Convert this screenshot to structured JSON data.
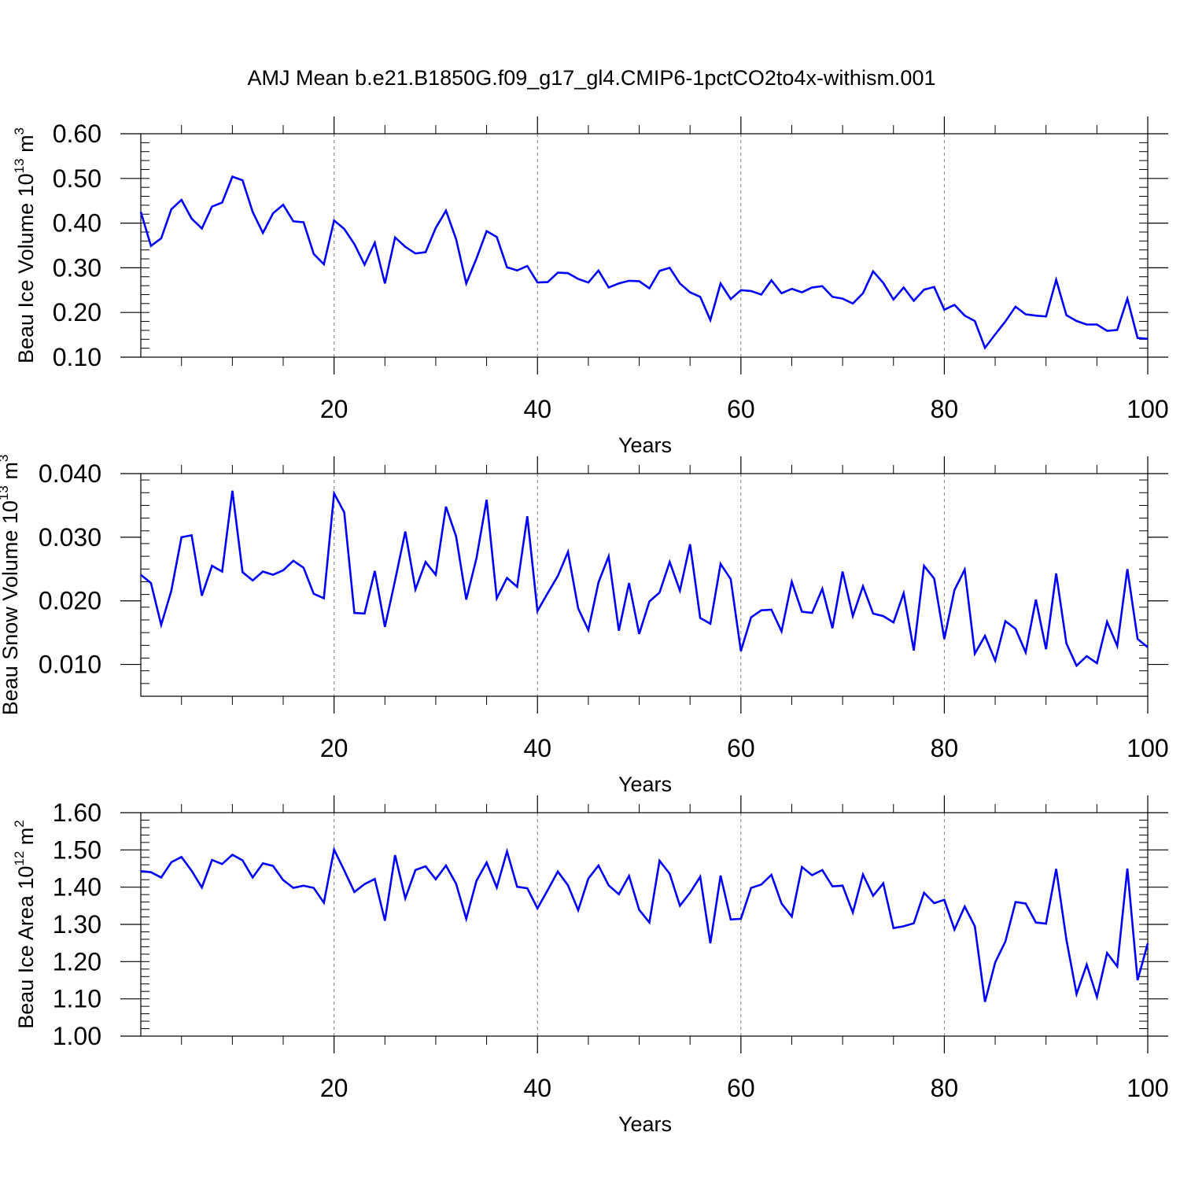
{
  "chart_data": {
    "type": "line",
    "title": "AMJ Mean b.e21.B1850G.f09_g17_gl4.CMIP6-1pctCO2to4x-withism.001",
    "line_color": "#0000ff",
    "grid": "dashed vertical lines at major x ticks",
    "panels": [
      {
        "ylabel": "Beau Ice Volume",
        "ylabel_unit_base": "10",
        "ylabel_unit_exp": "13",
        "ylabel_unit_tail": " m",
        "ylabel_unit_exp2": "3",
        "xlabel": "Years",
        "xlim": [
          1,
          100
        ],
        "ylim": [
          0.1,
          0.6
        ],
        "x_ticks": [
          20,
          40,
          60,
          80,
          100
        ],
        "x_tick_labels": [
          "20",
          "40",
          "60",
          "80",
          "100"
        ],
        "y_ticks": [
          0.1,
          0.2,
          0.3,
          0.4,
          0.5,
          0.6
        ],
        "y_tick_labels": [
          "0.10",
          "0.20",
          "0.30",
          "0.40",
          "0.50",
          "0.60"
        ],
        "y_minor_step": 0.02,
        "values": [
          0.425,
          0.349,
          0.366,
          0.431,
          0.452,
          0.41,
          0.388,
          0.437,
          0.446,
          0.504,
          0.496,
          0.425,
          0.378,
          0.422,
          0.441,
          0.404,
          0.402,
          0.331,
          0.308,
          0.406,
          0.387,
          0.353,
          0.307,
          0.356,
          0.265,
          0.368,
          0.347,
          0.332,
          0.335,
          0.389,
          0.428,
          0.364,
          0.265,
          0.321,
          0.382,
          0.369,
          0.301,
          0.294,
          0.304,
          0.267,
          0.268,
          0.289,
          0.288,
          0.275,
          0.267,
          0.294,
          0.256,
          0.265,
          0.271,
          0.27,
          0.254,
          0.293,
          0.3,
          0.265,
          0.245,
          0.235,
          0.183,
          0.265,
          0.23,
          0.25,
          0.248,
          0.24,
          0.272,
          0.243,
          0.253,
          0.245,
          0.256,
          0.259,
          0.235,
          0.231,
          0.22,
          0.243,
          0.292,
          0.266,
          0.229,
          0.256,
          0.226,
          0.251,
          0.257,
          0.206,
          0.217,
          0.193,
          0.181,
          0.121,
          0.151,
          0.18,
          0.213,
          0.196,
          0.193,
          0.191,
          0.273,
          0.194,
          0.181,
          0.173,
          0.173,
          0.159,
          0.161,
          0.231,
          0.143,
          0.141
        ]
      },
      {
        "ylabel": "Beau Snow Volume",
        "ylabel_unit_base": "10",
        "ylabel_unit_exp": "13",
        "ylabel_unit_tail": " m",
        "ylabel_unit_exp2": "3",
        "xlabel": "Years",
        "xlim": [
          1,
          100
        ],
        "ylim": [
          0.005,
          0.04
        ],
        "x_ticks": [
          20,
          40,
          60,
          80,
          100
        ],
        "x_tick_labels": [
          "20",
          "40",
          "60",
          "80",
          "100"
        ],
        "y_ticks": [
          0.01,
          0.02,
          0.03,
          0.04
        ],
        "y_tick_labels": [
          "0.010",
          "0.020",
          "0.030",
          "0.040"
        ],
        "y_minor_step": 0.002,
        "values": [
          0.0241,
          0.0228,
          0.0162,
          0.0216,
          0.03,
          0.0303,
          0.0208,
          0.0255,
          0.0246,
          0.0373,
          0.0245,
          0.0232,
          0.0246,
          0.0241,
          0.0248,
          0.0263,
          0.0252,
          0.0211,
          0.0204,
          0.0369,
          0.0339,
          0.0181,
          0.018,
          0.0247,
          0.0159,
          0.0232,
          0.0309,
          0.0218,
          0.0261,
          0.0241,
          0.0348,
          0.0301,
          0.0202,
          0.0267,
          0.0359,
          0.0204,
          0.0236,
          0.0222,
          0.0333,
          0.0184,
          0.0212,
          0.0239,
          0.0277,
          0.0188,
          0.0154,
          0.0229,
          0.027,
          0.0153,
          0.0228,
          0.0148,
          0.0199,
          0.0213,
          0.0261,
          0.0216,
          0.0289,
          0.0173,
          0.0164,
          0.0258,
          0.0234,
          0.0121,
          0.0174,
          0.0185,
          0.0186,
          0.0152,
          0.023,
          0.0183,
          0.0181,
          0.0219,
          0.0157,
          0.0246,
          0.0176,
          0.0223,
          0.018,
          0.0176,
          0.0166,
          0.0212,
          0.0122,
          0.0255,
          0.0235,
          0.014,
          0.0217,
          0.0249,
          0.0117,
          0.0145,
          0.0106,
          0.0168,
          0.0156,
          0.0119,
          0.0202,
          0.0124,
          0.0243,
          0.0133,
          0.0098,
          0.0113,
          0.0102,
          0.0167,
          0.0129,
          0.025,
          0.014,
          0.0127
        ]
      },
      {
        "ylabel": "Beau Ice Area",
        "ylabel_unit_base": "10",
        "ylabel_unit_exp": "12",
        "ylabel_unit_tail": " m",
        "ylabel_unit_exp2": "2",
        "xlabel": "Years",
        "xlim": [
          1,
          100
        ],
        "ylim": [
          1.0,
          1.6
        ],
        "x_ticks": [
          20,
          40,
          60,
          80,
          100
        ],
        "x_tick_labels": [
          "20",
          "40",
          "60",
          "80",
          "100"
        ],
        "y_ticks": [
          1.0,
          1.1,
          1.2,
          1.3,
          1.4,
          1.5,
          1.6
        ],
        "y_tick_labels": [
          "1.00",
          "1.10",
          "1.20",
          "1.30",
          "1.40",
          "1.50",
          "1.60"
        ],
        "y_minor_step": 0.02,
        "values": [
          1.443,
          1.44,
          1.426,
          1.467,
          1.481,
          1.444,
          1.399,
          1.473,
          1.462,
          1.487,
          1.472,
          1.426,
          1.464,
          1.457,
          1.419,
          1.398,
          1.404,
          1.398,
          1.358,
          1.501,
          1.445,
          1.387,
          1.408,
          1.422,
          1.31,
          1.486,
          1.37,
          1.446,
          1.456,
          1.421,
          1.458,
          1.409,
          1.315,
          1.417,
          1.466,
          1.399,
          1.496,
          1.401,
          1.397,
          1.343,
          1.392,
          1.442,
          1.405,
          1.338,
          1.423,
          1.458,
          1.405,
          1.381,
          1.43,
          1.339,
          1.305,
          1.471,
          1.436,
          1.35,
          1.385,
          1.428,
          1.249,
          1.431,
          1.313,
          1.315,
          1.398,
          1.407,
          1.433,
          1.356,
          1.321,
          1.454,
          1.432,
          1.446,
          1.402,
          1.404,
          1.332,
          1.434,
          1.377,
          1.41,
          1.29,
          1.295,
          1.303,
          1.385,
          1.357,
          1.366,
          1.286,
          1.348,
          1.295,
          1.092,
          1.198,
          1.254,
          1.36,
          1.356,
          1.305,
          1.302,
          1.449,
          1.259,
          1.113,
          1.192,
          1.105,
          1.223,
          1.187,
          1.45,
          1.15,
          1.249
        ]
      }
    ]
  }
}
